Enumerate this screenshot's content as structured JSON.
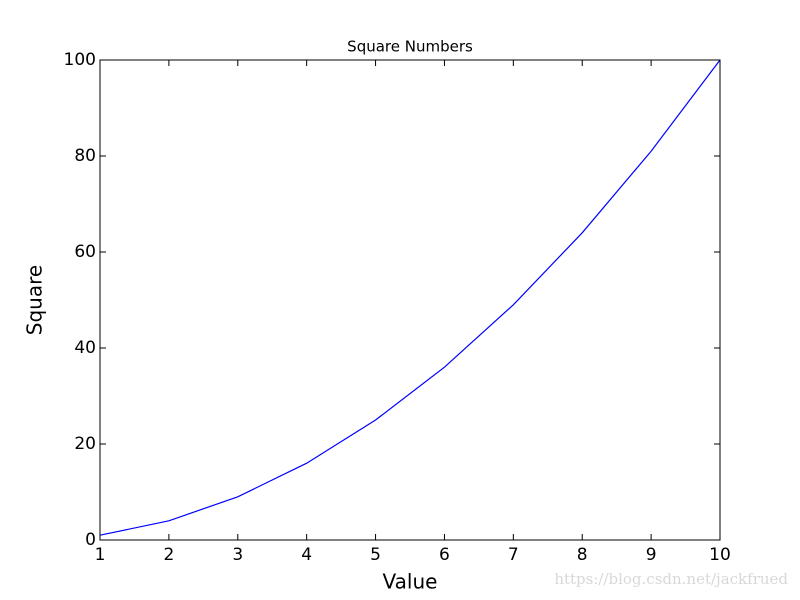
{
  "chart_data": {
    "type": "line",
    "title": "Square Numbers",
    "x_label": "Value",
    "y_label": "Square",
    "x": [
      1,
      2,
      3,
      4,
      5,
      6,
      7,
      8,
      9,
      10
    ],
    "series": [
      {
        "name": "Square",
        "color": "#0000ff",
        "values": [
          1,
          4,
          9,
          16,
          25,
          36,
          49,
          64,
          81,
          100
        ]
      }
    ],
    "xlim": [
      1,
      10
    ],
    "xticks": [
      1,
      2,
      3,
      4,
      5,
      6,
      7,
      8,
      9,
      10
    ],
    "ylim": [
      0,
      100
    ],
    "yticks": [
      0,
      20,
      40,
      60,
      80,
      100
    ],
    "grid": false,
    "watermark": "https://blog.csdn.net/jackfrued"
  }
}
